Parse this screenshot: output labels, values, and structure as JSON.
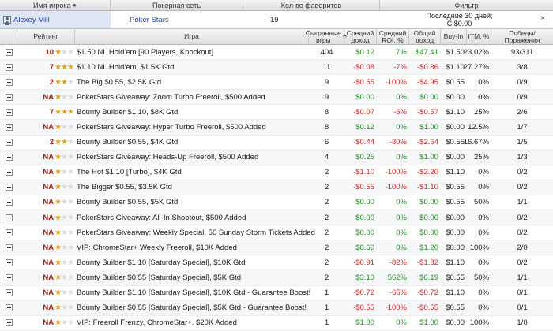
{
  "header": {
    "player_col": "Имя игрока",
    "network_col": "Покерная сеть",
    "favorites_col": "Кол-во фаворитов",
    "filter_col": "Фильтр"
  },
  "player": {
    "name": "Alexey Mill",
    "network": "Poker Stars",
    "favorites": "19",
    "filter_line1": "Последние 30 дней;",
    "filter_line2": "C $0.00",
    "close_glyph": "×"
  },
  "columns": {
    "rating": "Рейтинг",
    "game": "Игра",
    "played": "Сыгранные игры",
    "avg_income": "Средний доход",
    "avg_roi": "Средний ROI, %",
    "total_income": "Общий доход",
    "buyin": "Buy-In",
    "itm": "ITM, %",
    "wins_losses": "Победы/Поражения",
    "sort_glyph": "⬘"
  },
  "colors": {
    "positive": "#1f8c1f",
    "negative": "#d42424",
    "rating_number": "#a4211c",
    "star": "#e0a21a",
    "link": "#1d3fa8"
  },
  "rows": [
    {
      "rating": "10",
      "stars": 1,
      "game": "$1.50 NL Hold'em [90 Players, Knockout]",
      "played": "404",
      "avg": "$0.12",
      "roi": "7%",
      "total": "$47.41",
      "buyin": "$1.50",
      "itm": "23.02%",
      "wl": "93/311"
    },
    {
      "rating": "7",
      "stars": 3,
      "game": "$1.10 NL Hold'em, $1.5K Gtd",
      "played": "11",
      "avg": "-$0.08",
      "roi": "-7%",
      "total": "-$0.86",
      "buyin": "$1.10",
      "itm": "27.27%",
      "wl": "3/8"
    },
    {
      "rating": "2",
      "stars": 2,
      "game": "The Big $0.55, $2.5K Gtd",
      "played": "9",
      "avg": "-$0.55",
      "roi": "-100%",
      "total": "-$4.95",
      "buyin": "$0.55",
      "itm": "0%",
      "wl": "0/9"
    },
    {
      "rating": "NA",
      "stars": 0,
      "game": "PokerStars Giveaway:  Zoom Turbo Freeroll, $500 Added",
      "played": "9",
      "avg": "$0.00",
      "roi": "0%",
      "total": "$0.00",
      "buyin": "$0.00",
      "itm": "0%",
      "wl": "0/9"
    },
    {
      "rating": "7",
      "stars": 3,
      "game": "Bounty Builder $1.10, $8K Gtd",
      "played": "8",
      "avg": "-$0.07",
      "roi": "-6%",
      "total": "-$0.57",
      "buyin": "$1.10",
      "itm": "25%",
      "wl": "2/6"
    },
    {
      "rating": "NA",
      "stars": 0,
      "game": "PokerStars Giveaway:  Hyper Turbo Freeroll, $500 Added",
      "played": "8",
      "avg": "$0.12",
      "roi": "0%",
      "total": "$1.00",
      "buyin": "$0.00",
      "itm": "12.5%",
      "wl": "1/7"
    },
    {
      "rating": "2",
      "stars": 2,
      "game": "Bounty Builder $0.55, $4K Gtd",
      "played": "6",
      "avg": "-$0.44",
      "roi": "-80%",
      "total": "-$2.64",
      "buyin": "$0.55",
      "itm": "16.67%",
      "wl": "1/5"
    },
    {
      "rating": "NA",
      "stars": 0,
      "game": "PokerStars Giveaway:  Heads-Up Freeroll, $500 Added",
      "played": "4",
      "avg": "$0.25",
      "roi": "0%",
      "total": "$1.00",
      "buyin": "$0.00",
      "itm": "25%",
      "wl": "1/3"
    },
    {
      "rating": "NA",
      "stars": 0,
      "game": "The Hot $1.10 [Turbo], $4K Gtd",
      "played": "2",
      "avg": "-$1.10",
      "roi": "-100%",
      "total": "-$2.20",
      "buyin": "$1.10",
      "itm": "0%",
      "wl": "0/2"
    },
    {
      "rating": "NA",
      "stars": 0,
      "game": "The Bigger $0.55, $3.5K Gtd",
      "played": "2",
      "avg": "-$0.55",
      "roi": "-100%",
      "total": "-$1.10",
      "buyin": "$0.55",
      "itm": "0%",
      "wl": "0/2"
    },
    {
      "rating": "NA",
      "stars": 0,
      "game": "Bounty Builder $0.55, $5K Gtd",
      "played": "2",
      "avg": "$0.00",
      "roi": "0%",
      "total": "$0.00",
      "buyin": "$0.55",
      "itm": "50%",
      "wl": "1/1"
    },
    {
      "rating": "NA",
      "stars": 0,
      "game": "PokerStars Giveaway:  All-In Shootout, $500 Added",
      "played": "2",
      "avg": "$0.00",
      "roi": "0%",
      "total": "$0.00",
      "buyin": "$0.00",
      "itm": "0%",
      "wl": "0/2"
    },
    {
      "rating": "NA",
      "stars": 0,
      "game": "PokerStars Giveaway:  Weekly Special, 50 Sunday Storm Tickets Added",
      "played": "2",
      "avg": "$0.00",
      "roi": "0%",
      "total": "$0.00",
      "buyin": "$0.00",
      "itm": "0%",
      "wl": "0/2"
    },
    {
      "rating": "NA",
      "stars": 0,
      "game": "VIP: ChromeStar+ Weekly Freeroll, $10K Added",
      "played": "2",
      "avg": "$0.60",
      "roi": "0%",
      "total": "$1.20",
      "buyin": "$0.00",
      "itm": "100%",
      "wl": "2/0"
    },
    {
      "rating": "NA",
      "stars": 0,
      "game": "Bounty Builder $1.10 [Saturday Special], $10K Gtd",
      "played": "2",
      "avg": "-$0.91",
      "roi": "-82%",
      "total": "-$1.82",
      "buyin": "$1.10",
      "itm": "0%",
      "wl": "0/2"
    },
    {
      "rating": "NA",
      "stars": 0,
      "game": "Bounty Builder $0.55 [Saturday Special], $5K Gtd",
      "played": "2",
      "avg": "$3.10",
      "roi": "562%",
      "total": "$6.19",
      "buyin": "$0.55",
      "itm": "50%",
      "wl": "1/1"
    },
    {
      "rating": "NA",
      "stars": 0,
      "game": "Bounty Builder $1.10 [Saturday Special], $10K Gtd - Guarantee Boost!",
      "played": "1",
      "avg": "-$0.72",
      "roi": "-65%",
      "total": "-$0.72",
      "buyin": "$1.10",
      "itm": "0%",
      "wl": "0/1"
    },
    {
      "rating": "NA",
      "stars": 0,
      "game": "Bounty Builder $0.55 [Saturday Special], $5K Gtd - Guarantee Boost!",
      "played": "1",
      "avg": "-$0.55",
      "roi": "-100%",
      "total": "-$0.55",
      "buyin": "$0.55",
      "itm": "0%",
      "wl": "0/1"
    },
    {
      "rating": "NA",
      "stars": 0,
      "game": "VIP: Freeroll Frenzy, ChromeStar+, $20K Added",
      "played": "1",
      "avg": "$1.00",
      "roi": "0%",
      "total": "$1.00",
      "buyin": "$0.00",
      "itm": "100%",
      "wl": "1/0"
    }
  ]
}
